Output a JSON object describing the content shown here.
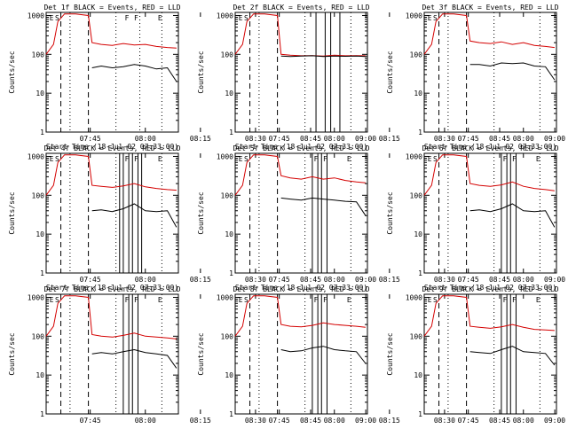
{
  "chart_data": {
    "type": "line",
    "figure": "RHESSI detector rate panels",
    "y_scale": "log",
    "ylim": [
      1,
      1200
    ],
    "y_ticks": [
      1,
      10,
      100,
      1000
    ],
    "y_tick_labels": [
      "1",
      "10",
      "100",
      "1000"
    ],
    "ylabel": "Counts/sec",
    "xlabel": "Start Time (18-Jul-02 07:33:00)",
    "x_units": "minutes after 07:33:00",
    "xlim": [
      0,
      36
    ],
    "x_ticks": [
      12,
      27,
      42,
      57,
      72,
      87
    ],
    "x_tick_labels": [
      "07:45",
      "08:00",
      "08:15",
      "08:30",
      "08:45",
      "09:00"
    ],
    "series_names": [
      "Events (BLACK)",
      "LLD (RED)"
    ],
    "series_colors": {
      "events": "#000000",
      "lld": "#d40000"
    },
    "panels": [
      {
        "title": "Det 1f BLACK = Events, RED = LLD",
        "markers": [
          {
            "label": "E",
            "at": 1.5
          },
          {
            "label": "S",
            "at": 3.0
          },
          {
            "label": "F",
            "at": 22.0
          },
          {
            "label": "F",
            "at": 24.5
          },
          {
            "label": "E",
            "at": 31.0
          }
        ],
        "dashed_at": [
          4.0,
          11.5
        ],
        "dotted_at": [
          6.5,
          19.0,
          25.5,
          31.5
        ],
        "solid_at": [],
        "lld": {
          "x": [
            0,
            2,
            3.2,
            5,
            8,
            11.5,
            12.5,
            15,
            18,
            21,
            24,
            27,
            30,
            33,
            35.5
          ],
          "y": [
            100,
            180,
            700,
            1100,
            1100,
            1000,
            200,
            180,
            170,
            190,
            175,
            180,
            160,
            150,
            145
          ]
        },
        "events": {
          "x": [
            12.5,
            15,
            18,
            21,
            24,
            27,
            30,
            33,
            35.5
          ],
          "y": [
            45,
            50,
            45,
            48,
            55,
            50,
            42,
            45,
            20
          ]
        }
      },
      {
        "title": "Det 2f BLACK = Events, RED = LLD",
        "markers": [
          {
            "label": "E",
            "at": 1.5
          },
          {
            "label": "S",
            "at": 3.0
          }
        ],
        "dashed_at": [
          4.0,
          11.5
        ],
        "dotted_at": [
          6.5,
          19.0,
          31.5
        ],
        "solid_at": [
          22.0,
          24.5,
          26.0,
          28.5
        ],
        "lld": {
          "x": [
            0,
            2,
            3.2,
            5,
            8,
            11.5,
            12.5,
            15,
            18,
            21,
            24,
            27,
            30,
            33,
            35.5
          ],
          "y": [
            100,
            180,
            700,
            1100,
            1100,
            1000,
            100,
            95,
            92,
            93,
            90,
            95,
            92,
            93,
            92
          ]
        },
        "events": {
          "x": [
            12.5,
            15,
            18,
            21,
            24,
            27,
            30,
            33,
            35.5
          ],
          "y": [
            90,
            88,
            90,
            92,
            88,
            90,
            89,
            90,
            88
          ]
        }
      },
      {
        "title": "Det 3f BLACK = Events, RED = LLD",
        "markers": [
          {
            "label": "E",
            "at": 1.5
          },
          {
            "label": "S",
            "at": 3.0
          }
        ],
        "dashed_at": [
          4.0,
          11.5
        ],
        "dotted_at": [
          6.5,
          19.0,
          31.5
        ],
        "solid_at": [],
        "lld": {
          "x": [
            0,
            2,
            3.2,
            5,
            8,
            11.5,
            12.5,
            15,
            18,
            21,
            24,
            27,
            30,
            33,
            35.5
          ],
          "y": [
            100,
            180,
            700,
            1100,
            1100,
            1000,
            220,
            200,
            190,
            210,
            180,
            200,
            170,
            160,
            150
          ]
        },
        "events": {
          "x": [
            12.5,
            15,
            18,
            21,
            24,
            27,
            30,
            33,
            35.5
          ],
          "y": [
            55,
            55,
            50,
            60,
            58,
            60,
            50,
            48,
            22
          ]
        }
      },
      {
        "title": "Det 4f BLACK = Events, RED = LLD",
        "markers": [
          {
            "label": "E",
            "at": 1.5
          },
          {
            "label": "S",
            "at": 3.0
          },
          {
            "label": "F",
            "at": 22.0
          },
          {
            "label": "F",
            "at": 24.5
          },
          {
            "label": "E",
            "at": 31.0
          }
        ],
        "dashed_at": [
          4.0,
          11.5
        ],
        "dotted_at": [
          6.5,
          19.0,
          31.5
        ],
        "solid_at": [
          20.0,
          21.0,
          22.5,
          23.5,
          25.0,
          26.0
        ],
        "lld": {
          "x": [
            0,
            2,
            3.2,
            5,
            8,
            11.5,
            12.5,
            15,
            18,
            21,
            24,
            27,
            30,
            33,
            35.5
          ],
          "y": [
            100,
            180,
            700,
            1100,
            1100,
            1000,
            180,
            170,
            160,
            175,
            200,
            165,
            150,
            140,
            135
          ]
        },
        "events": {
          "x": [
            12.5,
            15,
            18,
            21,
            24,
            27,
            30,
            33,
            35.5
          ],
          "y": [
            40,
            42,
            38,
            45,
            60,
            40,
            38,
            40,
            15
          ]
        }
      },
      {
        "title": "Det 5f BLACK = Events, RED = LLD",
        "markers": [
          {
            "label": "E",
            "at": 1.5
          },
          {
            "label": "S",
            "at": 3.0
          },
          {
            "label": "F",
            "at": 22.0
          },
          {
            "label": "F",
            "at": 24.5
          },
          {
            "label": "E",
            "at": 31.0
          }
        ],
        "dashed_at": [
          4.0,
          11.5
        ],
        "dotted_at": [
          6.5,
          19.0,
          31.5
        ],
        "solid_at": [
          21.0,
          22.5,
          23.5,
          25.0
        ],
        "lld": {
          "x": [
            0,
            2,
            3.2,
            5,
            8,
            11.5,
            12.5,
            15,
            18,
            21,
            24,
            27,
            30,
            33,
            35.5
          ],
          "y": [
            100,
            180,
            700,
            1100,
            1100,
            1000,
            320,
            280,
            260,
            300,
            260,
            280,
            240,
            220,
            210
          ]
        },
        "events": {
          "x": [
            12.5,
            15,
            18,
            21,
            24,
            27,
            30,
            33,
            35.5
          ],
          "y": [
            85,
            80,
            75,
            85,
            80,
            75,
            70,
            68,
            30
          ]
        }
      },
      {
        "title": "Det 6f BLACK = Events, RED = LLD",
        "markers": [
          {
            "label": "E",
            "at": 1.5
          },
          {
            "label": "S",
            "at": 3.0
          },
          {
            "label": "F",
            "at": 22.0
          },
          {
            "label": "F",
            "at": 24.5
          },
          {
            "label": "E",
            "at": 31.0
          }
        ],
        "dashed_at": [
          4.0,
          11.5
        ],
        "dotted_at": [
          6.5,
          19.0,
          31.5
        ],
        "solid_at": [
          21.0,
          22.5,
          23.5,
          25.0
        ],
        "lld": {
          "x": [
            0,
            2,
            3.2,
            5,
            8,
            11.5,
            12.5,
            15,
            18,
            21,
            24,
            27,
            30,
            33,
            35.5
          ],
          "y": [
            100,
            180,
            700,
            1100,
            1100,
            1000,
            200,
            180,
            170,
            185,
            220,
            170,
            150,
            140,
            130
          ]
        },
        "events": {
          "x": [
            12.5,
            15,
            18,
            21,
            24,
            27,
            30,
            33,
            35.5
          ],
          "y": [
            40,
            42,
            38,
            45,
            60,
            40,
            38,
            40,
            15
          ]
        }
      },
      {
        "title": "Det 7f BLACK = Events, RED = LLD",
        "markers": [
          {
            "label": "E",
            "at": 1.5
          },
          {
            "label": "S",
            "at": 3.0
          },
          {
            "label": "F",
            "at": 22.0
          },
          {
            "label": "F",
            "at": 24.5
          },
          {
            "label": "E",
            "at": 31.0
          }
        ],
        "dashed_at": [
          4.0,
          11.5
        ],
        "dotted_at": [
          6.5,
          19.0,
          31.5
        ],
        "solid_at": [
          21.0,
          22.5,
          23.5,
          25.0
        ],
        "lld": {
          "x": [
            0,
            2,
            3.2,
            5,
            8,
            11.5,
            12.5,
            15,
            18,
            21,
            24,
            27,
            30,
            33,
            35.5
          ],
          "y": [
            100,
            180,
            700,
            1100,
            1100,
            1000,
            110,
            100,
            95,
            105,
            120,
            100,
            95,
            90,
            85
          ]
        },
        "events": {
          "x": [
            12.5,
            15,
            18,
            21,
            24,
            27,
            30,
            33,
            35.5
          ],
          "y": [
            35,
            38,
            35,
            40,
            45,
            38,
            35,
            32,
            15
          ]
        }
      },
      {
        "title": "Det 8f BLACK = Events, RED = LLD",
        "markers": [
          {
            "label": "E",
            "at": 1.5
          },
          {
            "label": "S",
            "at": 3.0
          },
          {
            "label": "F",
            "at": 22.0
          },
          {
            "label": "F",
            "at": 24.5
          },
          {
            "label": "E",
            "at": 31.0
          }
        ],
        "dashed_at": [
          4.0,
          11.5
        ],
        "dotted_at": [
          6.5,
          19.0,
          31.5
        ],
        "solid_at": [
          21.0,
          22.5,
          23.5,
          25.0
        ],
        "lld": {
          "x": [
            0,
            2,
            3.2,
            5,
            8,
            11.5,
            12.5,
            15,
            18,
            21,
            24,
            27,
            30,
            33,
            35.5
          ],
          "y": [
            100,
            180,
            700,
            1100,
            1100,
            1000,
            200,
            180,
            175,
            190,
            220,
            200,
            190,
            180,
            170
          ]
        },
        "events": {
          "x": [
            12.5,
            15,
            18,
            21,
            24,
            27,
            30,
            33,
            35.5
          ],
          "y": [
            45,
            40,
            42,
            50,
            55,
            45,
            42,
            40,
            20
          ]
        }
      },
      {
        "title": "Det 9f BLACK = Events, RED = LLD",
        "markers": [
          {
            "label": "E",
            "at": 1.5
          },
          {
            "label": "S",
            "at": 3.0
          },
          {
            "label": "F",
            "at": 22.0
          },
          {
            "label": "F",
            "at": 24.5
          },
          {
            "label": "E",
            "at": 31.0
          }
        ],
        "dashed_at": [
          4.0,
          11.5
        ],
        "dotted_at": [
          6.5,
          19.0,
          31.5
        ],
        "solid_at": [
          21.0,
          22.5,
          23.5,
          25.0
        ],
        "lld": {
          "x": [
            0,
            2,
            3.2,
            5,
            8,
            11.5,
            12.5,
            15,
            18,
            21,
            24,
            27,
            30,
            33,
            35.5
          ],
          "y": [
            100,
            180,
            700,
            1100,
            1100,
            1000,
            180,
            170,
            160,
            175,
            200,
            170,
            150,
            145,
            140
          ]
        },
        "events": {
          "x": [
            12.5,
            15,
            18,
            21,
            24,
            27,
            30,
            33,
            35.5
          ],
          "y": [
            40,
            38,
            36,
            45,
            55,
            40,
            38,
            36,
            18
          ]
        }
      }
    ]
  }
}
